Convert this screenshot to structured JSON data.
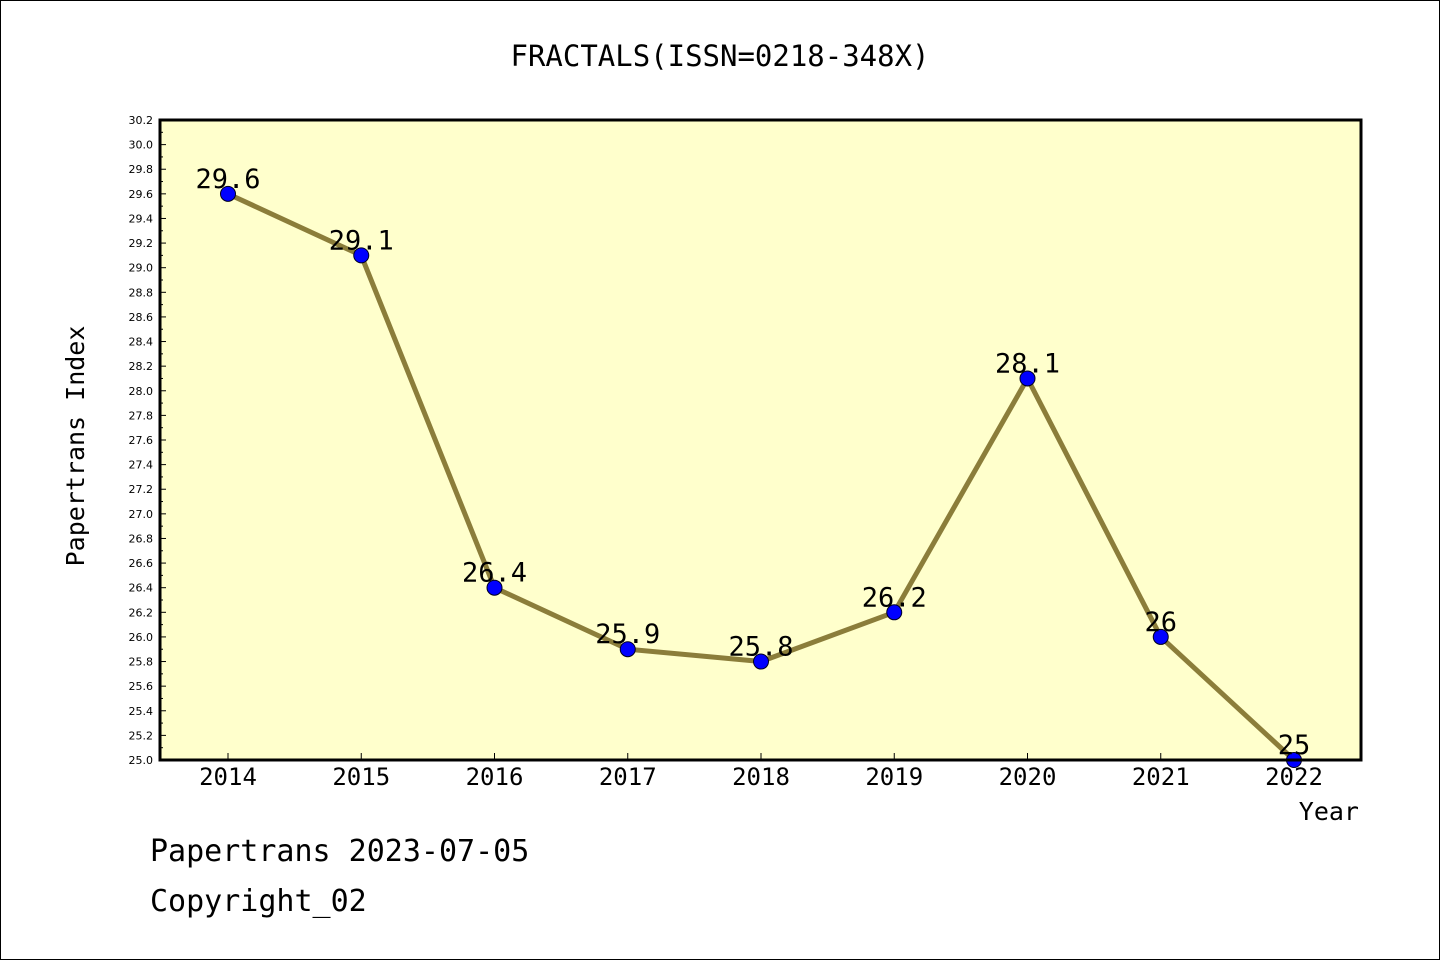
{
  "chart_data": {
    "type": "line",
    "title": "FRACTALS(ISSN=0218-348X)",
    "xlabel": "Year",
    "ylabel": "Papertrans Index",
    "categories": [
      "2014",
      "2015",
      "2016",
      "2017",
      "2018",
      "2019",
      "2020",
      "2021",
      "2022"
    ],
    "series": [
      {
        "values": [
          29.6,
          29.1,
          26.4,
          25.9,
          25.8,
          26.2,
          28.1,
          26.0,
          25.0
        ],
        "labels": [
          "29.6",
          "29.1",
          "26.4",
          "25.9",
          "25.8",
          "26.2",
          "28.1",
          "26",
          "25"
        ]
      }
    ],
    "ylim": [
      25.0,
      30.2
    ],
    "yticks": [
      "25.0",
      "25.2",
      "25.4",
      "25.6",
      "25.8",
      "26.0",
      "26.2",
      "26.4",
      "26.6",
      "26.8",
      "27.0",
      "27.2",
      "27.4",
      "27.6",
      "27.8",
      "28.0",
      "28.2",
      "28.4",
      "28.6",
      "28.8",
      "29.0",
      "29.2",
      "29.4",
      "29.6",
      "29.8",
      "30.0",
      "30.2"
    ],
    "grid": false,
    "legend": "none",
    "colors": {
      "plot_background": "#ffffcc",
      "line": "#8b7d3a",
      "marker": "#0000ff",
      "axis": "#000000"
    }
  },
  "footer": {
    "line1": "Papertrans 2023-07-05",
    "line2": "Copyright_02"
  }
}
